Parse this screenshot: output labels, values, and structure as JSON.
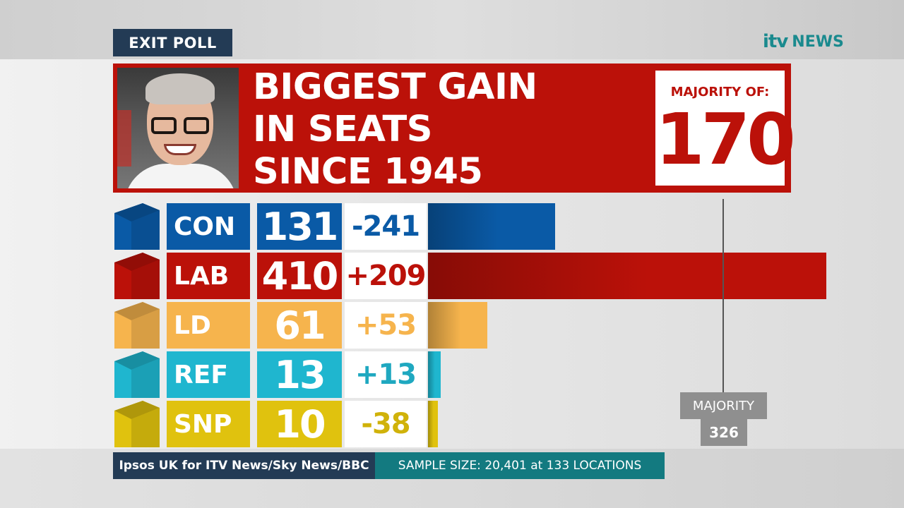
{
  "header": {
    "badge": "EXIT POLL",
    "logo_itv": "itv",
    "logo_news": "NEWS"
  },
  "headline": {
    "lines": [
      "BIGGEST GAIN",
      "IN SEATS",
      "SINCE 1945"
    ],
    "majority_label": "MAJORITY OF:",
    "majority_value": "170"
  },
  "chart_data": {
    "type": "bar",
    "orientation": "horizontal",
    "categories": [
      "CON",
      "LAB",
      "LD",
      "REF",
      "SNP"
    ],
    "values": [
      131,
      410,
      61,
      13,
      10
    ],
    "changes": [
      "-241",
      "+209",
      "+53",
      "+13",
      "-38"
    ],
    "majority_line": {
      "label": "MAJORITY",
      "value": 326
    },
    "colors": {
      "CON": "#0a5aa6",
      "LAB": "#bb1109",
      "LD": "#f6b44d",
      "REF": "#1fb6cf",
      "SNP": "#e0c20e"
    },
    "change_colors": {
      "CON": "#0a5aa6",
      "LAB": "#bb1109",
      "LD": "#f6b44d",
      "REF": "#1fa8c0",
      "SNP": "#d0b20a"
    }
  },
  "footer": {
    "source": "Ipsos UK for ITV News/Sky News/BBC",
    "sample": "SAMPLE SIZE: 20,401 at 133 LOCATIONS"
  }
}
